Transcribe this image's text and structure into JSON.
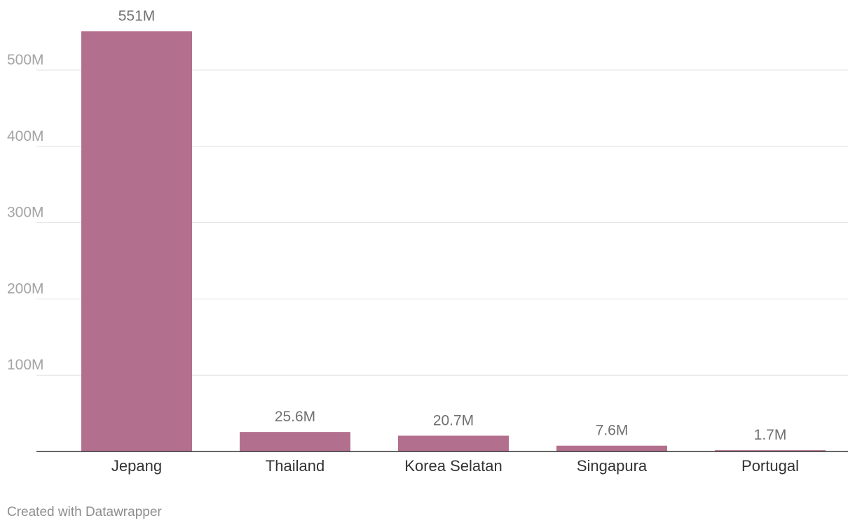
{
  "chart_data": {
    "type": "bar",
    "categories": [
      "Jepang",
      "Thailand",
      "Korea Selatan",
      "Singapura",
      "Portugal"
    ],
    "values": [
      551,
      25.6,
      20.7,
      7.6,
      1.7
    ],
    "value_labels": [
      "551M",
      "25.6M",
      "20.7M",
      "7.6M",
      "1.7M"
    ],
    "y_ticks": [
      100,
      200,
      300,
      400,
      500
    ],
    "y_tick_labels": [
      "100M",
      "200M",
      "300M",
      "400M",
      "500M"
    ],
    "ylim": [
      0,
      551
    ],
    "grid": true,
    "bar_color": "#b36f8e"
  },
  "footer": {
    "credit": "Created with Datawrapper"
  }
}
